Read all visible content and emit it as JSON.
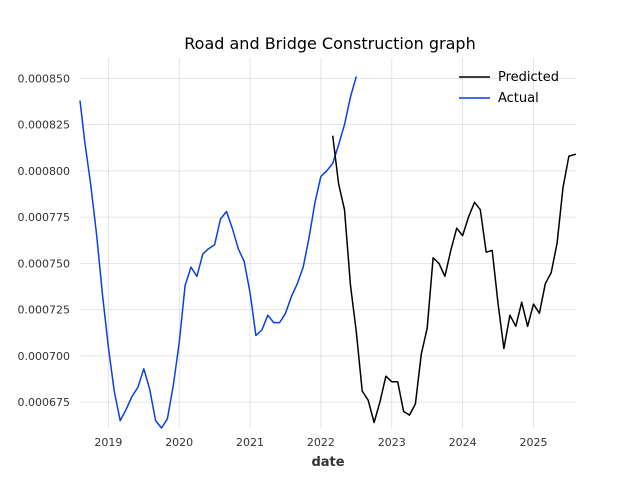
{
  "chart_data": {
    "type": "line",
    "title": "Road and Bridge Construction graph",
    "xlabel": "date",
    "ylabel": "",
    "xlim": [
      2018.6,
      2025.6
    ],
    "ylim": [
      0.000661,
      0.000861
    ],
    "x_ticks": [
      2019,
      2020,
      2021,
      2022,
      2023,
      2024,
      2025
    ],
    "x_tick_labels": [
      "2019",
      "2020",
      "2021",
      "2022",
      "2023",
      "2024",
      "2025"
    ],
    "y_ticks": [
      0.000675,
      0.0007,
      0.000725,
      0.00075,
      0.000775,
      0.0008,
      0.000825,
      0.00085
    ],
    "y_tick_labels": [
      "0.000675",
      "0.000700",
      "0.000725",
      "0.000750",
      "0.000775",
      "0.000800",
      "0.000825",
      "0.000850"
    ],
    "grid": true,
    "legend_position": "top-right",
    "series": [
      {
        "name": "Actual",
        "color": "#0b3fe6",
        "x": [
          2018.6,
          2018.667,
          2018.75,
          2018.833,
          2018.917,
          2019.0,
          2019.083,
          2019.167,
          2019.25,
          2019.333,
          2019.417,
          2019.5,
          2019.583,
          2019.667,
          2019.75,
          2019.833,
          2019.917,
          2020.0,
          2020.083,
          2020.167,
          2020.25,
          2020.333,
          2020.417,
          2020.5,
          2020.583,
          2020.667,
          2020.75,
          2020.833,
          2020.917,
          2021.0,
          2021.083,
          2021.167,
          2021.25,
          2021.333,
          2021.417,
          2021.5,
          2021.583,
          2021.667,
          2021.75,
          2021.833,
          2021.917,
          2022.0,
          2022.083,
          2022.167,
          2022.25,
          2022.333,
          2022.417,
          2022.5
        ],
        "y": [
          0.000838,
          0.000816,
          0.000793,
          0.000766,
          0.000733,
          0.000705,
          0.000681,
          0.000665,
          0.000671,
          0.000678,
          0.000683,
          0.000693,
          0.000682,
          0.000665,
          0.000661,
          0.000666,
          0.000684,
          0.000707,
          0.000738,
          0.000748,
          0.000743,
          0.000755,
          0.000758,
          0.00076,
          0.000774,
          0.000778,
          0.000769,
          0.000758,
          0.000751,
          0.000734,
          0.000711,
          0.000714,
          0.000722,
          0.000718,
          0.000718,
          0.000723,
          0.000732,
          0.000739,
          0.000748,
          0.000764,
          0.000783,
          0.000797,
          0.0008,
          0.000804,
          0.000814,
          0.000825,
          0.00084,
          0.000851
        ]
      },
      {
        "name": "Predicted",
        "color": "#000000",
        "x": [
          2022.167,
          2022.25,
          2022.333,
          2022.417,
          2022.5,
          2022.583,
          2022.667,
          2022.75,
          2022.833,
          2022.917,
          2023.0,
          2023.083,
          2023.167,
          2023.25,
          2023.333,
          2023.417,
          2023.5,
          2023.583,
          2023.667,
          2023.75,
          2023.833,
          2023.917,
          2024.0,
          2024.083,
          2024.167,
          2024.25,
          2024.333,
          2024.417,
          2024.5,
          2024.583,
          2024.667,
          2024.75,
          2024.833,
          2024.917,
          2025.0,
          2025.083,
          2025.167,
          2025.25,
          2025.333,
          2025.417,
          2025.5,
          2025.6
        ],
        "y": [
          0.000819,
          0.000793,
          0.000779,
          0.000738,
          0.000713,
          0.000681,
          0.000676,
          0.000664,
          0.000675,
          0.000689,
          0.000686,
          0.000686,
          0.00067,
          0.000668,
          0.000674,
          0.000701,
          0.000715,
          0.000753,
          0.00075,
          0.000743,
          0.000757,
          0.000769,
          0.000765,
          0.000775,
          0.000783,
          0.000779,
          0.000756,
          0.000757,
          0.000728,
          0.000704,
          0.000722,
          0.000716,
          0.000729,
          0.000716,
          0.000728,
          0.000723,
          0.000739,
          0.000745,
          0.000761,
          0.000791,
          0.000808,
          0.000809
        ]
      }
    ]
  }
}
